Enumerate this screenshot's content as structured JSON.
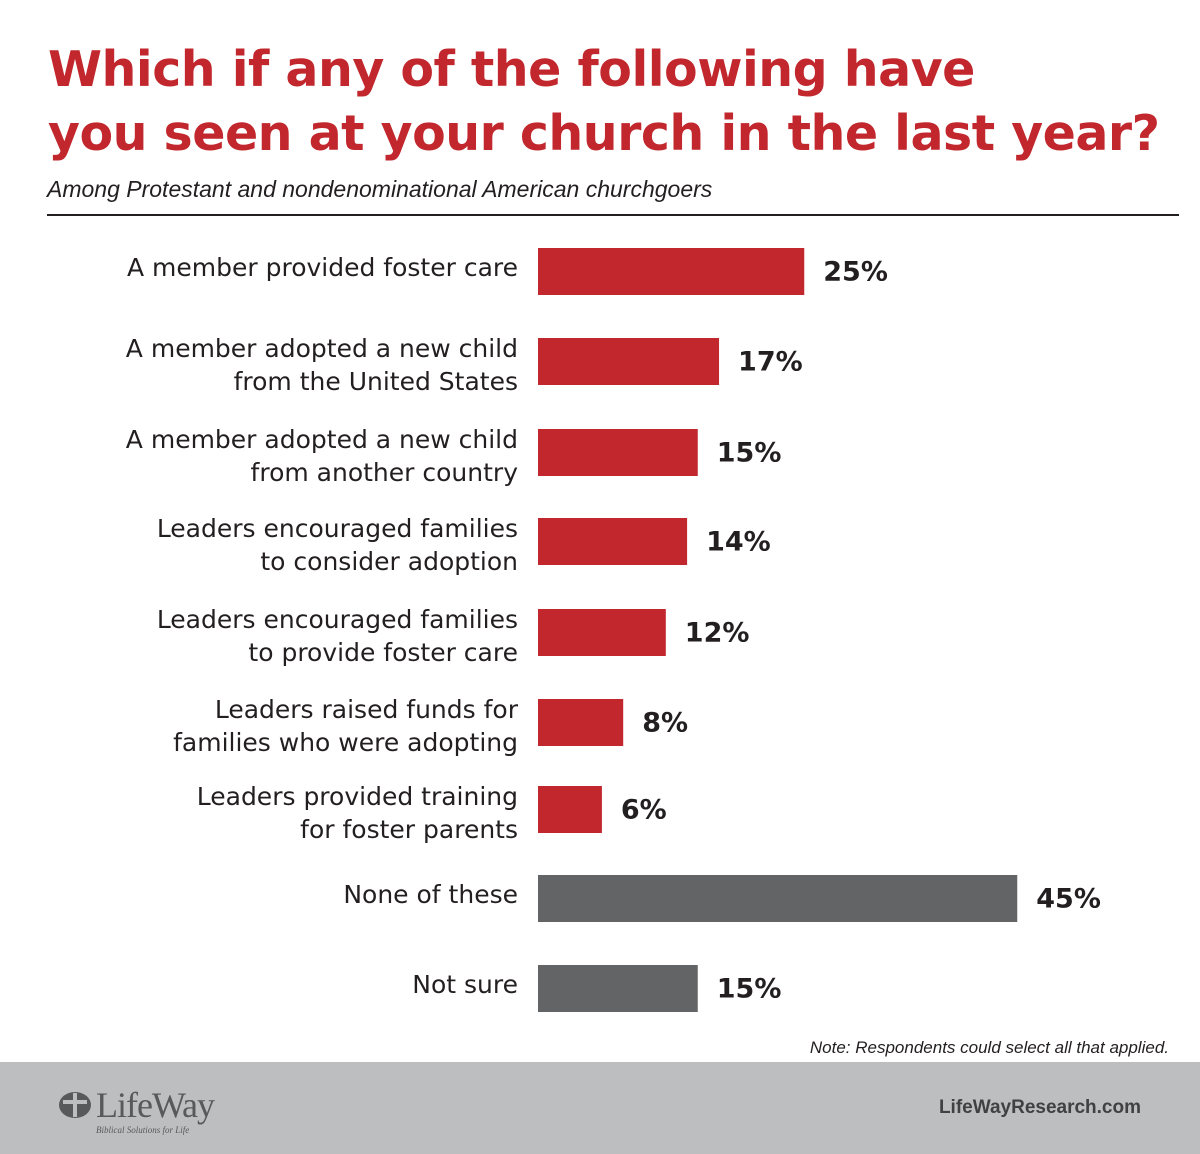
{
  "title_lines": [
    "Which if any of the following have",
    "you seen at your church in the last year?"
  ],
  "subtitle": "Among Protestant and nondenominational American churchgoers",
  "note": "Note: Respondents could select all that applied.",
  "footer": {
    "logo_text": "LifeWay",
    "logo_tagline": "Biblical Solutions for Life",
    "website": "LifeWayResearch.com"
  },
  "colors": {
    "title": "#c1272d",
    "bar_primary": "#c1272d",
    "bar_secondary": "#636466",
    "footer_bg": "#bcbec0"
  },
  "chart_data": {
    "type": "bar",
    "orientation": "horizontal",
    "unit": "%",
    "xlim": [
      0,
      50
    ],
    "grid": false,
    "categories": [
      [
        "A member provided foster care"
      ],
      [
        "A member adopted a new child",
        "from the United States"
      ],
      [
        "A member adopted a new child",
        "from another country"
      ],
      [
        "Leaders encouraged families",
        "to consider adoption"
      ],
      [
        "Leaders encouraged families",
        "to provide foster care"
      ],
      [
        "Leaders raised funds for",
        "families who were adopting"
      ],
      [
        "Leaders provided training",
        "for foster parents"
      ],
      [
        "None of these"
      ],
      [
        "Not sure"
      ]
    ],
    "values": [
      25,
      17,
      15,
      14,
      12,
      8,
      6,
      45,
      15
    ],
    "value_labels": [
      "25%",
      "17%",
      "15%",
      "14%",
      "12%",
      "8%",
      "6%",
      "45%",
      "15%"
    ],
    "bar_color_keys": [
      "primary",
      "primary",
      "primary",
      "primary",
      "primary",
      "primary",
      "primary",
      "secondary",
      "secondary"
    ]
  }
}
